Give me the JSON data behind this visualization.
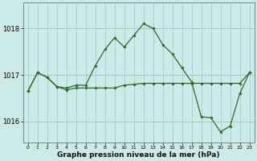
{
  "xlabel": "Graphe pression niveau de la mer (hPa)",
  "background_color": "#cceae7",
  "grid_color_y": "#ff9999",
  "grid_color_x": "#99ccbb",
  "line_color": "#2d6a2d",
  "ylim": [
    1015.55,
    1018.55
  ],
  "yticks": [
    1016,
    1017,
    1018
  ],
  "ytick_labels": [
    "1016",
    "1017",
    "1018"
  ],
  "xlim": [
    -0.5,
    23.5
  ],
  "hours": [
    0,
    1,
    2,
    3,
    4,
    5,
    6,
    7,
    8,
    9,
    10,
    11,
    12,
    13,
    14,
    15,
    16,
    17,
    18,
    19,
    20,
    21,
    22,
    23
  ],
  "series1": [
    1016.65,
    1017.05,
    1016.95,
    1016.75,
    1016.72,
    1016.78,
    1016.78,
    1017.2,
    1017.55,
    1017.8,
    1017.6,
    1017.85,
    1018.1,
    1018.0,
    1017.65,
    1017.45,
    1017.15,
    1016.85,
    1016.1,
    1016.08,
    1015.78,
    1015.9,
    1016.6,
    1017.05
  ],
  "series2": [
    1016.65,
    1017.05,
    1016.95,
    1016.75,
    1016.68,
    1016.72,
    1016.72,
    1016.72,
    1016.72,
    1016.72,
    1016.78,
    1016.8,
    1016.82,
    1016.82,
    1016.82,
    1016.82,
    1016.82,
    1016.82,
    1016.82,
    1016.82,
    1016.82,
    1016.82,
    1016.82,
    1017.05
  ],
  "xlabel_fontsize": 6.5,
  "ytick_fontsize": 6,
  "xtick_fontsize": 4.5
}
